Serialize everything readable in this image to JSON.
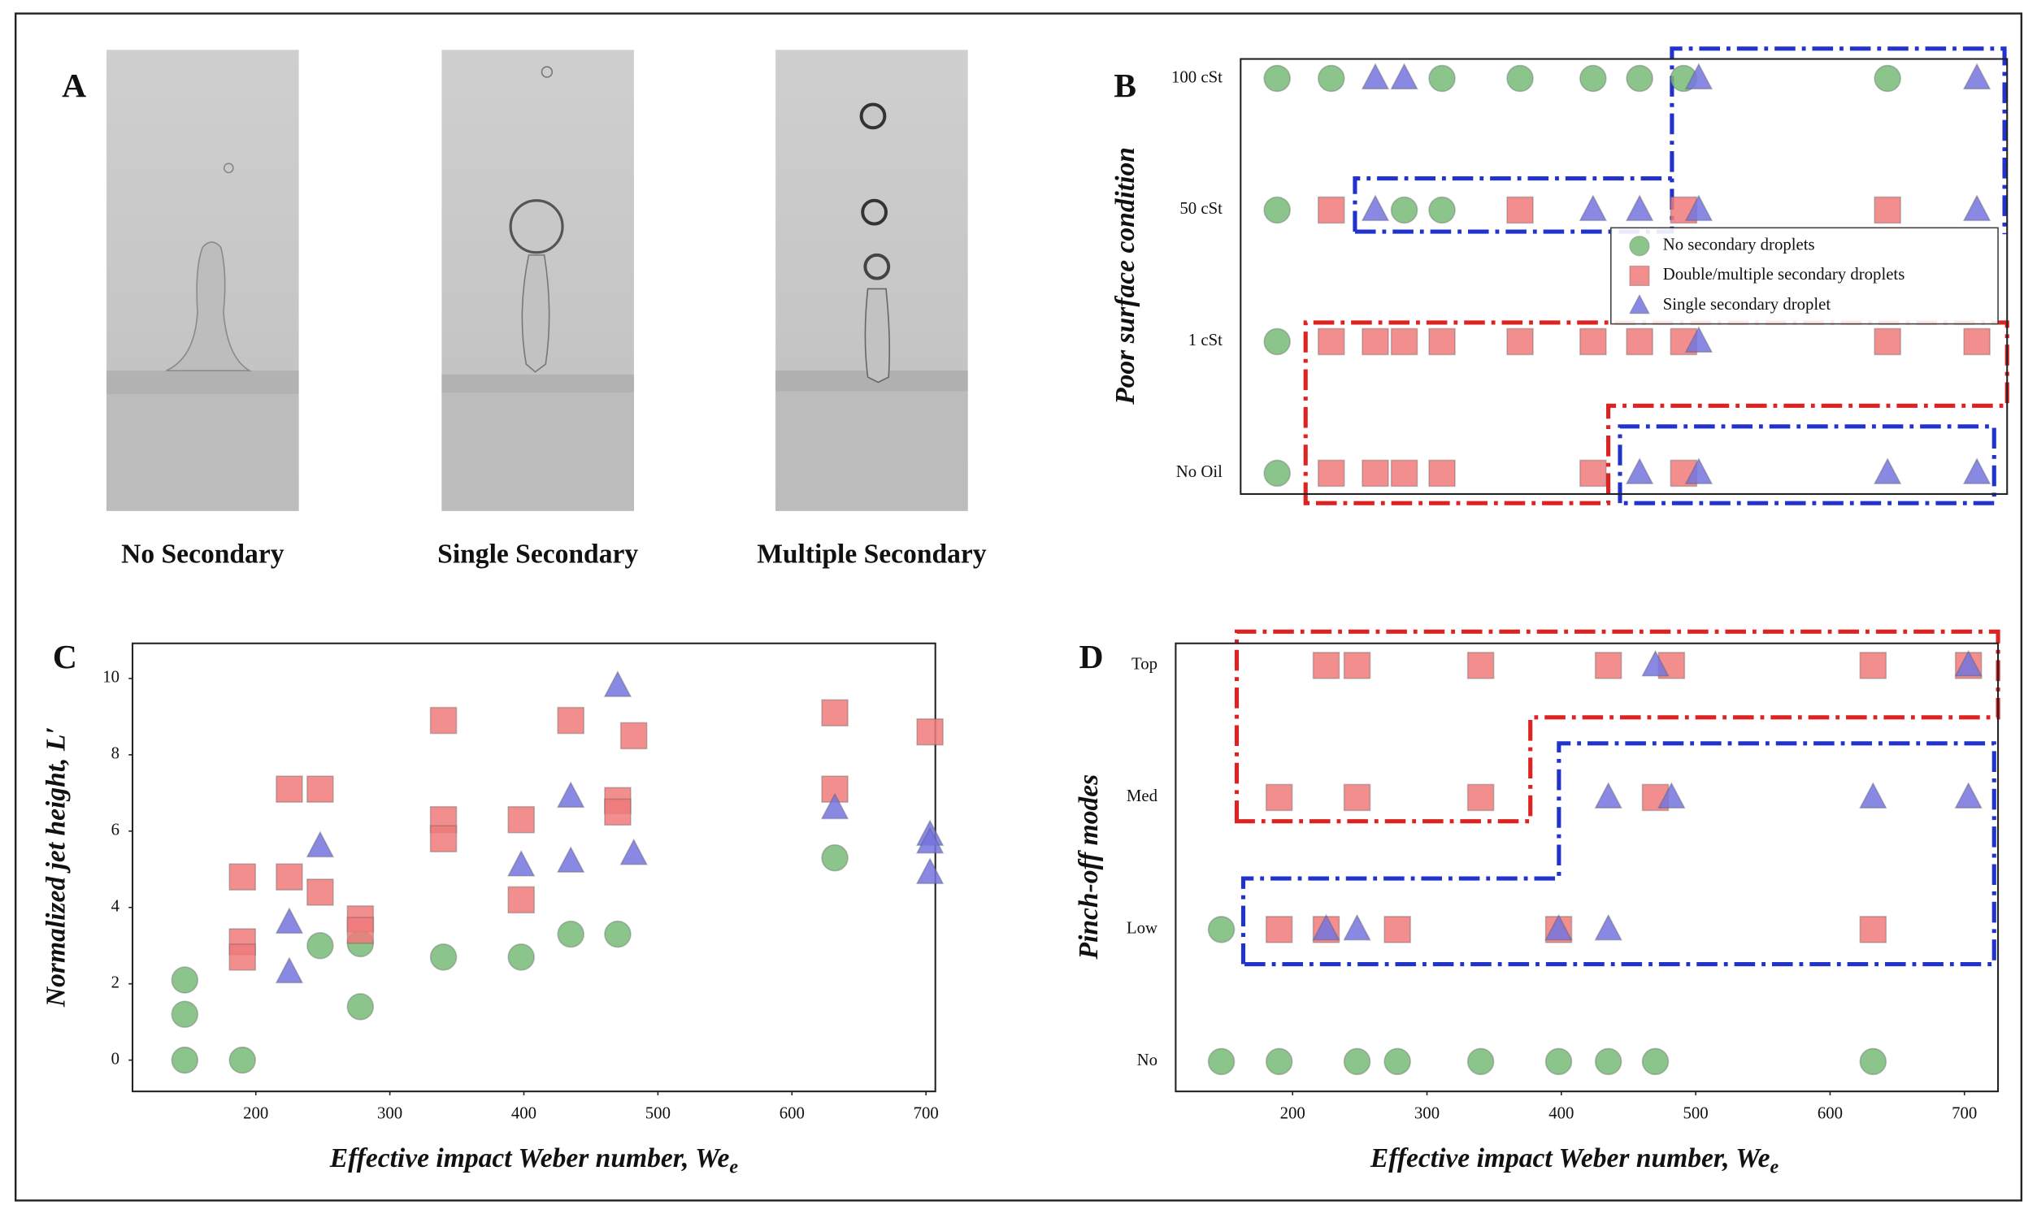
{
  "panel_a": {
    "label": "A",
    "captions": [
      "No Secondary",
      "Single Secondary",
      "Multiple Secondary"
    ]
  },
  "chart_data": [
    {
      "label": "B",
      "type": "scatter",
      "ylabel": "Poor surface condition",
      "y_categories": [
        "No Oil",
        "1 cSt",
        "50 cSt",
        "100 cSt"
      ],
      "xlim": [
        118,
        727
      ],
      "legend": "upper right",
      "series": [
        {
          "name": "No secondary droplets",
          "color": "#78bb78",
          "marker": "circle",
          "x": [
            147,
            190,
            278,
            340,
            398,
            435,
            470,
            632,
            147,
            248,
            278,
            147,
            147
          ],
          "y": [
            "100 cSt",
            "100 cSt",
            "100 cSt",
            "100 cSt",
            "100 cSt",
            "100 cSt",
            "100 cSt",
            "100 cSt",
            "50 cSt",
            "50 cSt",
            "50 cSt",
            "1 cSt",
            "No Oil"
          ]
        },
        {
          "name": "Double/multiple secondary droplets",
          "color": "#f07a7a",
          "marker": "square",
          "x": [
            190,
            340,
            470,
            632,
            190,
            225,
            248,
            278,
            340,
            398,
            435,
            470,
            632,
            703,
            190,
            225,
            248,
            278,
            398,
            470
          ],
          "y": [
            "50 cSt",
            "50 cSt",
            "50 cSt",
            "50 cSt",
            "1 cSt",
            "1 cSt",
            "1 cSt",
            "1 cSt",
            "1 cSt",
            "1 cSt",
            "1 cSt",
            "1 cSt",
            "1 cSt",
            "1 cSt",
            "No Oil",
            "No Oil",
            "No Oil",
            "No Oil",
            "No Oil",
            "No Oil"
          ]
        },
        {
          "name": "Single secondary droplet",
          "color": "#7474de",
          "marker": "triangle",
          "x": [
            225,
            248,
            482,
            703,
            225,
            398,
            435,
            482,
            703,
            482,
            435,
            482,
            632,
            703
          ],
          "y": [
            "100 cSt",
            "100 cSt",
            "100 cSt",
            "100 cSt",
            "50 cSt",
            "50 cSt",
            "50 cSt",
            "50 cSt",
            "50 cSt",
            "1 cSt",
            "No Oil",
            "No Oil",
            "No Oil",
            "No Oil"
          ]
        }
      ]
    },
    {
      "label": "C",
      "type": "scatter",
      "ylabel": "Normalized jet height, L′",
      "xlabel": "Effective impact Weber number, We",
      "xlabel_sub": "e",
      "xlim": [
        108,
        707
      ],
      "ylim": [
        -0.82,
        10.92
      ],
      "xticks": [
        200,
        300,
        400,
        500,
        600,
        700
      ],
      "yticks": [
        0,
        2,
        4,
        6,
        8,
        10
      ],
      "series": [
        {
          "color": "#78bb78",
          "marker": "circle",
          "x": [
            147,
            147,
            147,
            190,
            248,
            278,
            278,
            340,
            398,
            435,
            470,
            632
          ],
          "y": [
            2.1,
            1.2,
            0,
            0,
            3.0,
            3.05,
            1.4,
            2.7,
            2.7,
            3.3,
            3.3,
            5.3
          ]
        },
        {
          "color": "#f07a7a",
          "marker": "square",
          "x": [
            190,
            190,
            190,
            225,
            225,
            248,
            248,
            278,
            278,
            340,
            340,
            340,
            398,
            398,
            435,
            470,
            470,
            482,
            632,
            632,
            703
          ],
          "y": [
            4.8,
            3.1,
            2.7,
            7.1,
            4.8,
            7.1,
            4.4,
            3.7,
            3.4,
            8.9,
            6.3,
            5.8,
            6.3,
            4.2,
            8.9,
            6.8,
            6.5,
            8.5,
            9.1,
            7.1,
            8.6
          ]
        },
        {
          "color": "#7474de",
          "marker": "triangle",
          "x": [
            225,
            225,
            248,
            398,
            435,
            435,
            470,
            482,
            632,
            703,
            703,
            703
          ],
          "y": [
            3.6,
            2.3,
            5.6,
            5.1,
            6.9,
            5.2,
            9.8,
            5.4,
            6.6,
            5.9,
            5.7,
            4.9
          ]
        }
      ]
    },
    {
      "label": "D",
      "type": "scatter",
      "ylabel": "Pinch-off modes",
      "xlabel": "Effective impact Weber number, We",
      "xlabel_sub": "e",
      "y_categories": [
        "No",
        "Low",
        "Med",
        "Top"
      ],
      "xlim": [
        113,
        725
      ],
      "xticks": [
        200,
        300,
        400,
        500,
        600,
        700
      ],
      "series": [
        {
          "color": "#78bb78",
          "marker": "circle",
          "x": [
            147,
            190,
            248,
            278,
            340,
            398,
            435,
            470,
            632,
            147
          ],
          "y": [
            "No",
            "No",
            "No",
            "No",
            "No",
            "No",
            "No",
            "No",
            "No",
            "Low"
          ]
        },
        {
          "color": "#f07a7a",
          "marker": "square",
          "x": [
            225,
            248,
            340,
            435,
            482,
            632,
            703,
            190,
            248,
            340,
            470,
            190,
            225,
            278,
            398,
            632
          ],
          "y": [
            "Top",
            "Top",
            "Top",
            "Top",
            "Top",
            "Top",
            "Top",
            "Med",
            "Med",
            "Med",
            "Med",
            "Low",
            "Low",
            "Low",
            "Low",
            "Low"
          ]
        },
        {
          "color": "#7474de",
          "marker": "triangle",
          "x": [
            470,
            703,
            435,
            482,
            632,
            703,
            225,
            248,
            398,
            435
          ],
          "y": [
            "Top",
            "Top",
            "Med",
            "Med",
            "Med",
            "Med",
            "Low",
            "Low",
            "Low",
            "Low"
          ]
        }
      ]
    }
  ]
}
